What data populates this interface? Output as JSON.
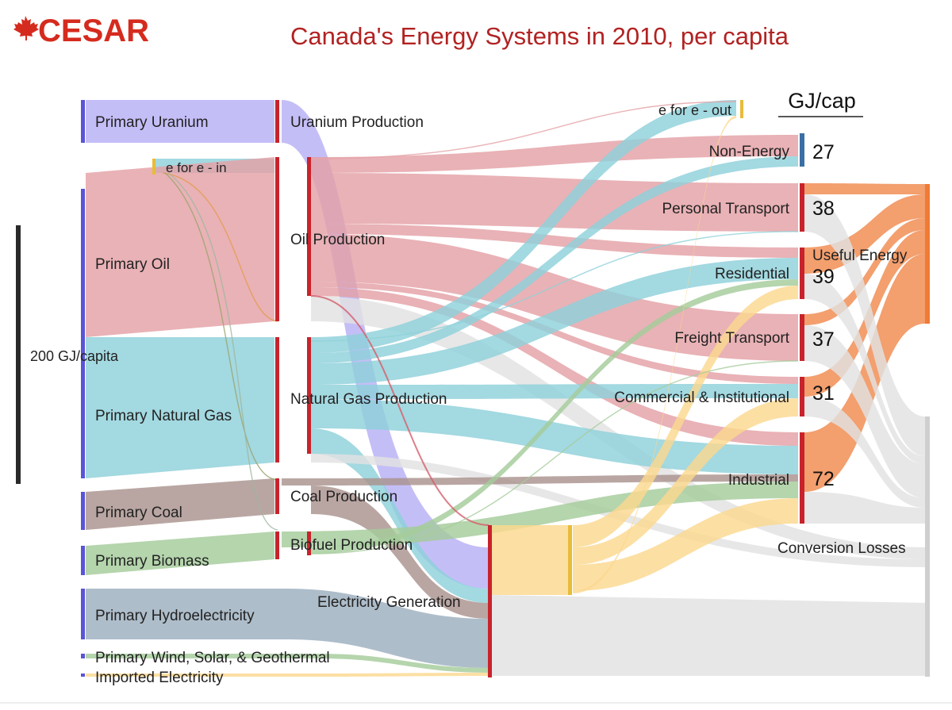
{
  "header": {
    "logo_text": "CESAR",
    "title": "Canada's Energy Systems in 2010, per capita",
    "unit_heading": "GJ/cap",
    "scale_label": "200 GJ/capita"
  },
  "colors": {
    "uranium": "#b7b0f5",
    "oil": "#e4a1a6",
    "gas": "#8fd1da",
    "coal": "#a9938d",
    "biomass": "#a5cc9b",
    "hydro": "#9caebe",
    "electricity": "#fbd88f",
    "useful": "#f08a4e",
    "losses": "#e2e2e2",
    "node_bar": "#c8232c",
    "source_bar": "#5a54d6",
    "efor": "#e7bc3a",
    "nonenergy_bar": "#3a6fa5",
    "useful_bar": "#ef7b35"
  },
  "sources": [
    {
      "label": "Primary Uranium"
    },
    {
      "label": "e for e - in"
    },
    {
      "label": "Primary Oil"
    },
    {
      "label": "Primary Natural Gas"
    },
    {
      "label": "Primary Coal"
    },
    {
      "label": "Primary Biomass"
    },
    {
      "label": "Primary Hydroelectricity"
    },
    {
      "label": "Primary Wind, Solar, & Geothermal"
    },
    {
      "label": "Imported Electricity"
    }
  ],
  "production": [
    {
      "label": "Uranium Production"
    },
    {
      "label": "Oil Production"
    },
    {
      "label": "Natural Gas Production"
    },
    {
      "label": "Coal Production"
    },
    {
      "label": "Biofuel Production"
    },
    {
      "label": "Electricity Generation"
    }
  ],
  "sectors": [
    {
      "label": "e for e - out",
      "value": ""
    },
    {
      "label": "Non-Energy",
      "value": "27"
    },
    {
      "label": "Personal Transport",
      "value": "38"
    },
    {
      "label": "Residential",
      "value": "39"
    },
    {
      "label": "Freight Transport",
      "value": "37"
    },
    {
      "label": "Commercial & Institutional",
      "value": "31"
    },
    {
      "label": "Industrial",
      "value": "72"
    }
  ],
  "outputs": {
    "useful": "Useful Energy",
    "losses": "Conversion Losses"
  }
}
